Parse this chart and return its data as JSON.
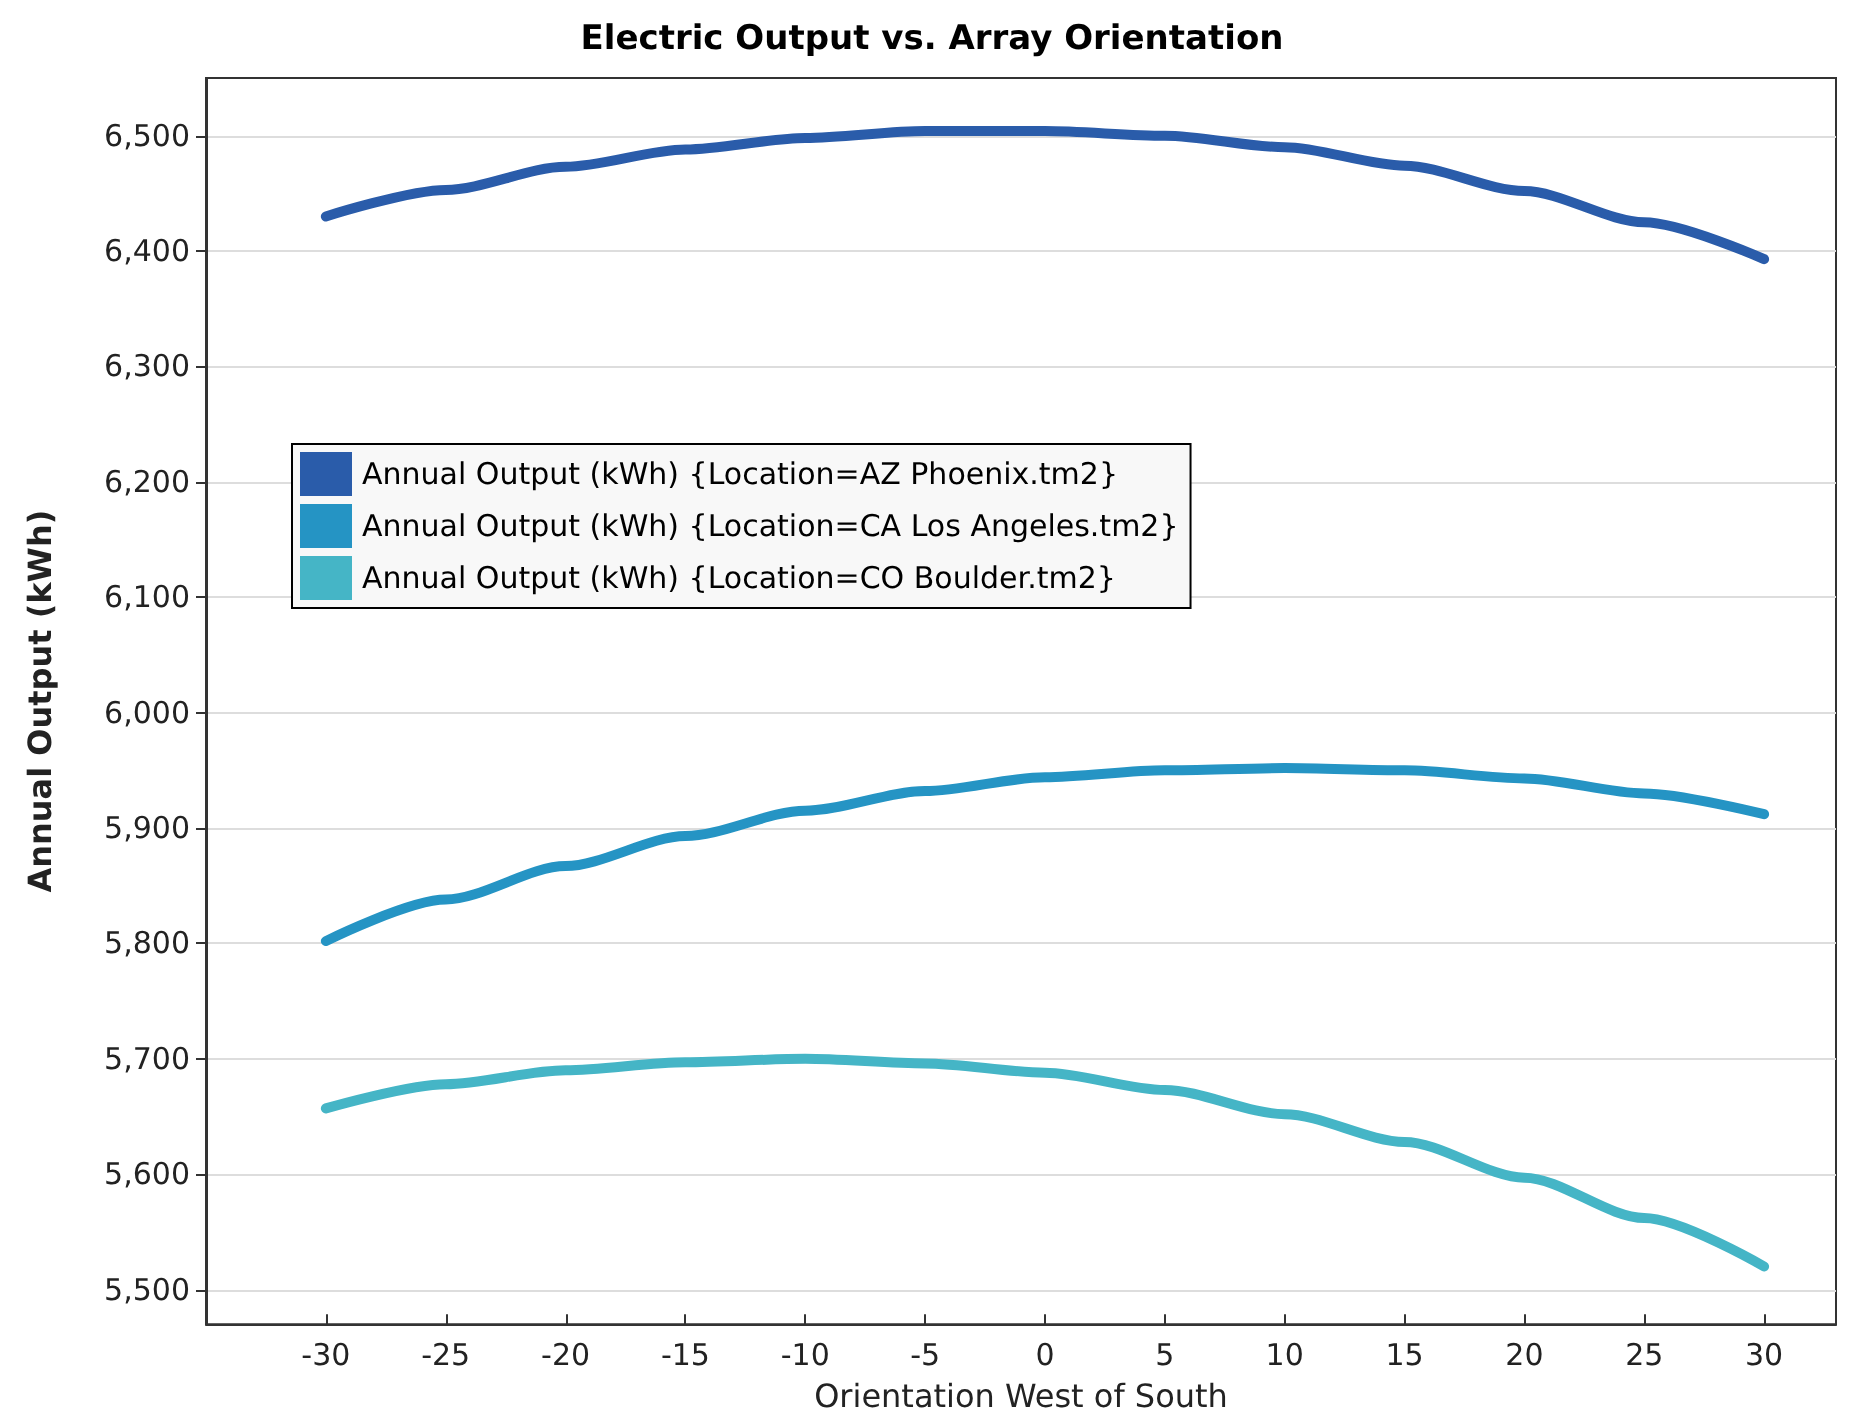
{
  "chart_data": {
    "type": "line",
    "title": "Electric Output vs. Array Orientation",
    "xlabel": "Orientation West of South",
    "ylabel": "Annual Output (kWh)",
    "x": [
      -30,
      -25,
      -20,
      -15,
      -10,
      -5,
      0,
      5,
      10,
      15,
      20,
      25,
      30
    ],
    "series": [
      {
        "name": "Annual Output (kWh) {Location=AZ Phoenix.tm2}",
        "color": "#2a5caa",
        "values": [
          6430,
          6453,
          6473,
          6488,
          6498,
          6504,
          6504,
          6500,
          6490,
          6474,
          6452,
          6425,
          6393
        ]
      },
      {
        "name": "Annual Output (kWh) {Location=CA Los Angeles.tm2}",
        "color": "#2594c4",
        "values": [
          5802,
          5838,
          5867,
          5893,
          5915,
          5932,
          5944,
          5950,
          5952,
          5950,
          5943,
          5930,
          5912
        ]
      },
      {
        "name": "Annual Output (kWh) {Location=CO Boulder.tm2}",
        "color": "#45b5c6",
        "values": [
          5657,
          5678,
          5690,
          5697,
          5700,
          5696,
          5688,
          5673,
          5652,
          5628,
          5597,
          5562,
          5520
        ]
      }
    ],
    "xlim": [
      -35,
      33
    ],
    "xticks": [
      -30,
      -25,
      -20,
      -15,
      -10,
      -5,
      0,
      5,
      10,
      15,
      20,
      25,
      30
    ],
    "ylim": [
      5470,
      6550
    ],
    "yticks": [
      {
        "value": 5500,
        "label": "5,500"
      },
      {
        "value": 5600,
        "label": "5,600"
      },
      {
        "value": 5700,
        "label": "5,700"
      },
      {
        "value": 5800,
        "label": "5,800"
      },
      {
        "value": 5900,
        "label": "5,900"
      },
      {
        "value": 6000,
        "label": "6,000"
      },
      {
        "value": 6100,
        "label": "6,100"
      },
      {
        "value": 6200,
        "label": "6,200"
      },
      {
        "value": 6300,
        "label": "6,300"
      },
      {
        "value": 6400,
        "label": "6,400"
      },
      {
        "value": 6500,
        "label": "6,500"
      }
    ],
    "grid": "y",
    "legend": "left",
    "marker": "none",
    "line_style": "solid"
  }
}
